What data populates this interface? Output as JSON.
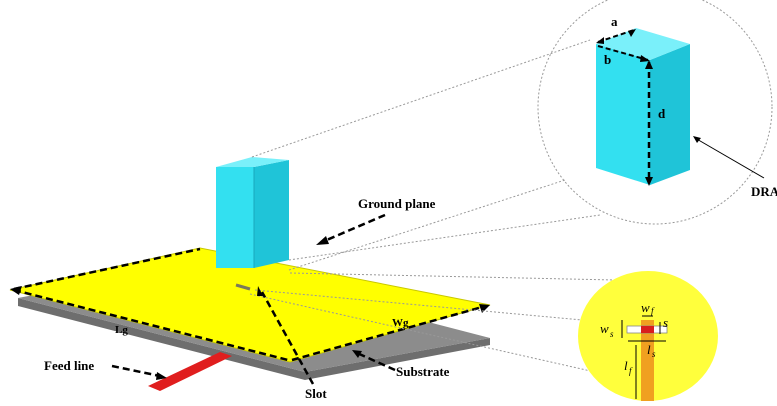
{
  "labels": {
    "ground_plane": "Ground plane",
    "substrate": "Substrate",
    "feed_line": "Feed line",
    "slot": "Slot",
    "dra": "DRA",
    "lg": "Lg",
    "wg": "Wg",
    "a": "a",
    "b": "b",
    "d": "d",
    "w": "w",
    "f": "f",
    "s": "s",
    "l": "l"
  },
  "colors": {
    "ground": "#ffff00",
    "ground_edge": "#c8c800",
    "substrate": "#8c8c8c",
    "substrate_dark": "#6e6e6e",
    "dra_front": "#33e0f0",
    "dra_side": "#1fc4d8",
    "dra_top": "#7af0fa",
    "feed": "#e01e1e",
    "feed_zoom": "#f0a020",
    "slot_zoom": "#d81e1e",
    "zoom_disc": "#ffff3c"
  }
}
